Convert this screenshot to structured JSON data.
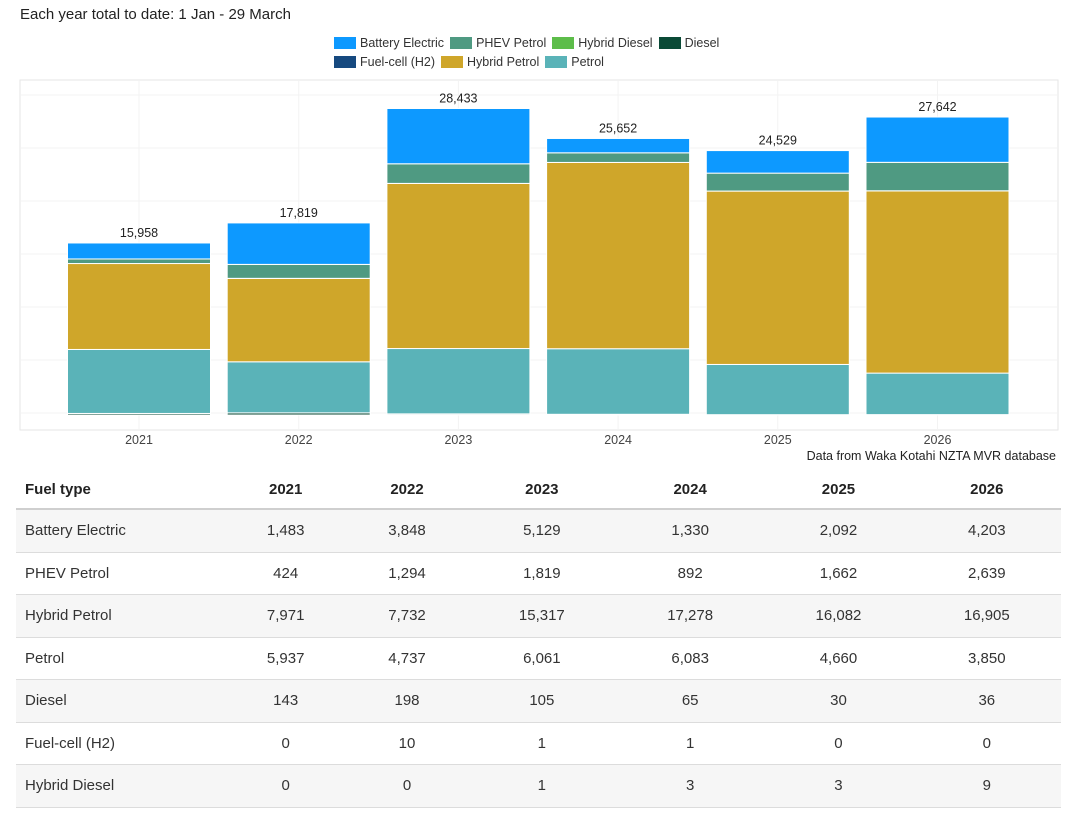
{
  "page_title": "Each year total to date: 1 Jan - 29 March",
  "source_note": "Data from Waka Kotahi NZTA MVR database",
  "legend": {
    "row1": [
      {
        "label": "Battery Electric",
        "color": "#0d99ff"
      },
      {
        "label": "PHEV Petrol",
        "color": "#4f9a82"
      },
      {
        "label": "Hybrid Diesel",
        "color": "#5dbd4a"
      },
      {
        "label": "Diesel",
        "color": "#0a4a36"
      }
    ],
    "row2": [
      {
        "label": "Fuel-cell (H2)",
        "color": "#16497f"
      },
      {
        "label": "Hybrid Petrol",
        "color": "#cfa62a"
      },
      {
        "label": "Petrol",
        "color": "#5ab3b8"
      }
    ]
  },
  "chart_data": {
    "type": "bar",
    "stacked": true,
    "categories": [
      "2021",
      "2022",
      "2023",
      "2024",
      "2025",
      "2026"
    ],
    "totals": [
      15958,
      17819,
      28433,
      25652,
      24529,
      27642
    ],
    "total_labels": [
      "15,958",
      "17,819",
      "28,433",
      "25,652",
      "24,529",
      "27,642"
    ],
    "ylim": [
      0,
      29500
    ],
    "y_axis_labels_shown": false,
    "grid": true,
    "legend_position": "top",
    "series": [
      {
        "name": "Diesel",
        "color": "#0a4a36",
        "values": [
          143,
          198,
          105,
          65,
          30,
          36
        ]
      },
      {
        "name": "Petrol",
        "color": "#5ab3b8",
        "values": [
          5937,
          4737,
          6061,
          6083,
          4660,
          3850
        ]
      },
      {
        "name": "Hybrid Petrol",
        "color": "#cfa62a",
        "values": [
          7971,
          7732,
          15317,
          17278,
          16082,
          16905
        ]
      },
      {
        "name": "Fuel-cell (H2)",
        "color": "#16497f",
        "values": [
          0,
          10,
          1,
          1,
          0,
          0
        ]
      },
      {
        "name": "Hybrid Diesel",
        "color": "#5dbd4a",
        "values": [
          0,
          0,
          1,
          3,
          3,
          9
        ]
      },
      {
        "name": "PHEV Petrol",
        "color": "#4f9a82",
        "values": [
          424,
          1294,
          1819,
          892,
          1662,
          2639
        ]
      },
      {
        "name": "Battery Electric",
        "color": "#0d99ff",
        "values": [
          1483,
          3848,
          5129,
          1330,
          2092,
          4203
        ]
      }
    ]
  },
  "table": {
    "headers": [
      "Fuel type",
      "2021",
      "2022",
      "2023",
      "2024",
      "2025",
      "2026"
    ],
    "rows": [
      [
        "Battery Electric",
        "1,483",
        "3,848",
        "5,129",
        "1,330",
        "2,092",
        "4,203"
      ],
      [
        "PHEV Petrol",
        "424",
        "1,294",
        "1,819",
        "892",
        "1,662",
        "2,639"
      ],
      [
        "Hybrid Petrol",
        "7,971",
        "7,732",
        "15,317",
        "17,278",
        "16,082",
        "16,905"
      ],
      [
        "Petrol",
        "5,937",
        "4,737",
        "6,061",
        "6,083",
        "4,660",
        "3,850"
      ],
      [
        "Diesel",
        "143",
        "198",
        "105",
        "65",
        "30",
        "36"
      ],
      [
        "Fuel-cell (H2)",
        "0",
        "10",
        "1",
        "1",
        "0",
        "0"
      ],
      [
        "Hybrid Diesel",
        "0",
        "0",
        "1",
        "3",
        "3",
        "9"
      ]
    ]
  }
}
